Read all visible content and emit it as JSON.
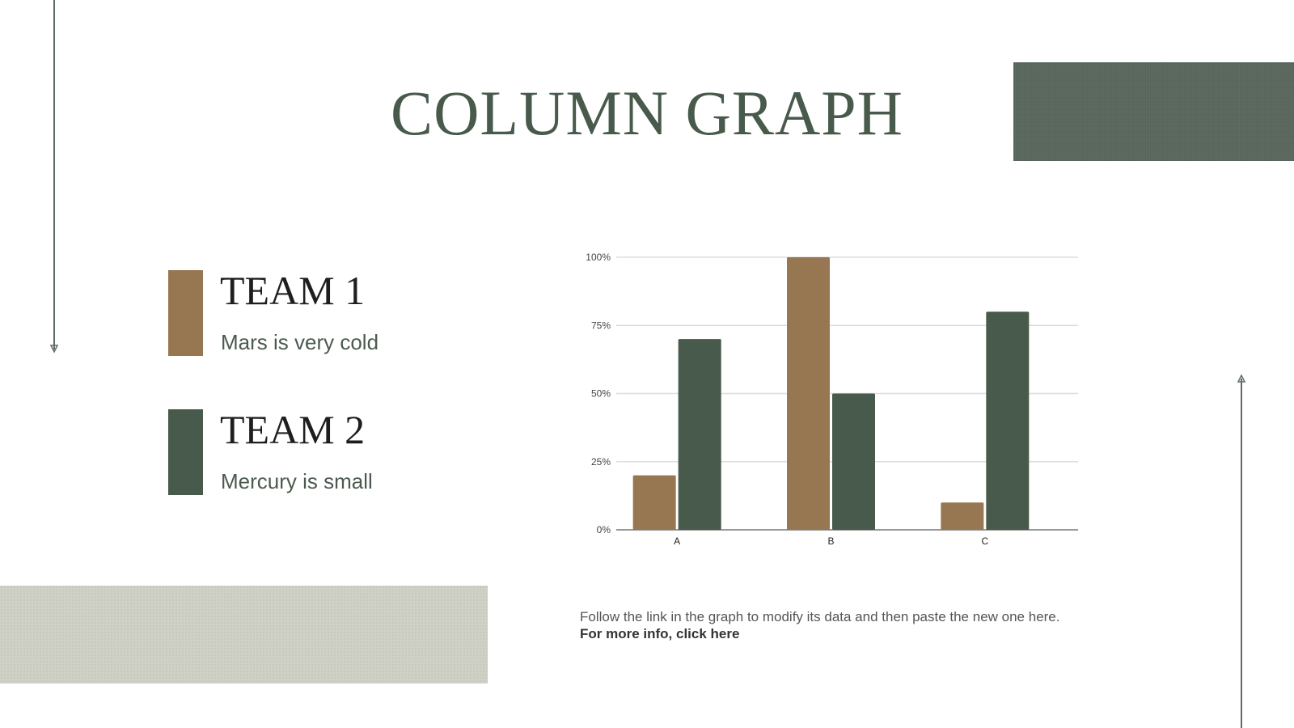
{
  "title": "COLUMN GRAPH",
  "legend": [
    {
      "title": "TEAM 1",
      "subtitle": "Mars is very cold",
      "color": "#977752"
    },
    {
      "title": "TEAM 2",
      "subtitle": "Mercury is small",
      "color": "#475a4b"
    }
  ],
  "footer": {
    "note": "Follow the link in the graph to modify its data and then paste the new one here.",
    "link": "For more info, click here"
  },
  "chart_data": {
    "type": "bar",
    "categories": [
      "A",
      "B",
      "C"
    ],
    "series": [
      {
        "values": [
          20,
          100,
          10
        ],
        "color": "#977752"
      },
      {
        "values": [
          70,
          50,
          80
        ],
        "color": "#475a4b"
      }
    ],
    "yticks": [
      "0%",
      "25%",
      "50%",
      "75%",
      "100%"
    ],
    "ylim": [
      0,
      100
    ],
    "grid": true
  }
}
